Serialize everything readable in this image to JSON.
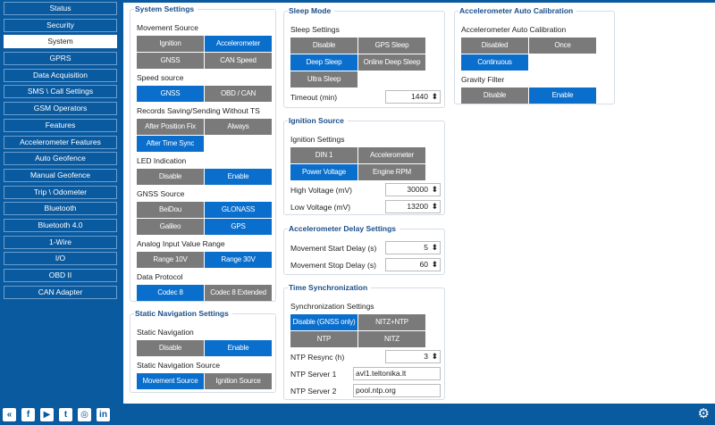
{
  "sidebar": {
    "items": [
      "Status",
      "Security",
      "System",
      "GPRS",
      "Data Acquisition",
      "SMS \\ Call Settings",
      "GSM Operators",
      "Features",
      "Accelerometer Features",
      "Auto Geofence",
      "Manual Geofence",
      "Trip \\ Odometer",
      "Bluetooth",
      "Bluetooth 4.0",
      "1-Wire",
      "I/O",
      "OBD II",
      "CAN Adapter"
    ],
    "active": "System"
  },
  "footer": {
    "icons": [
      "back-icon",
      "facebook-icon",
      "youtube-icon",
      "twitter-icon",
      "instagram-icon",
      "linkedin-icon"
    ],
    "settings_icon": "gear-icon"
  },
  "colors": {
    "brand": "#0a5aa0",
    "active_button": "#0a6ecc",
    "inactive_button": "#7a7a7a"
  },
  "groups": [
    {
      "id": "system-settings",
      "title": "System Settings",
      "rows": [
        {
          "type": "label",
          "text": "Movement Source"
        },
        {
          "type": "buttons",
          "items": [
            {
              "label": "Ignition",
              "active": false
            },
            {
              "label": "Accelerometer",
              "active": true
            },
            {
              "label": "GNSS",
              "active": false
            },
            {
              "label": "CAN Speed",
              "active": false
            }
          ]
        },
        {
          "type": "label",
          "text": "Speed source"
        },
        {
          "type": "buttons",
          "items": [
            {
              "label": "GNSS",
              "active": true
            },
            {
              "label": "OBD / CAN",
              "active": false
            }
          ]
        },
        {
          "type": "label",
          "text": "Records Saving/Sending Without TS"
        },
        {
          "type": "buttons",
          "items": [
            {
              "label": "After Position Fix",
              "active": false
            },
            {
              "label": "Always",
              "active": false
            },
            {
              "label": "After Time Sync",
              "active": true
            }
          ]
        },
        {
          "type": "label",
          "text": "LED Indication"
        },
        {
          "type": "buttons",
          "items": [
            {
              "label": "Disable",
              "active": false
            },
            {
              "label": "Enable",
              "active": true
            }
          ]
        },
        {
          "type": "label",
          "text": "GNSS Source"
        },
        {
          "type": "buttons",
          "items": [
            {
              "label": "BeiDou",
              "active": false
            },
            {
              "label": "GLONASS",
              "active": true
            },
            {
              "label": "Galileo",
              "active": false
            },
            {
              "label": "GPS",
              "active": true
            }
          ]
        },
        {
          "type": "label",
          "text": "Analog Input Value Range"
        },
        {
          "type": "buttons",
          "items": [
            {
              "label": "Range 10V",
              "active": false
            },
            {
              "label": "Range 30V",
              "active": true
            }
          ]
        },
        {
          "type": "label",
          "text": "Data Protocol"
        },
        {
          "type": "buttons",
          "items": [
            {
              "label": "Codec 8",
              "active": true
            },
            {
              "label": "Codec 8 Extended",
              "active": false
            }
          ]
        }
      ]
    },
    {
      "id": "static-navigation",
      "title": "Static Navigation Settings",
      "rows": [
        {
          "type": "label",
          "text": "Static Navigation"
        },
        {
          "type": "buttons",
          "items": [
            {
              "label": "Disable",
              "active": false
            },
            {
              "label": "Enable",
              "active": true
            }
          ]
        },
        {
          "type": "label",
          "text": "Static Navigation Source"
        },
        {
          "type": "buttons",
          "items": [
            {
              "label": "Movement Source",
              "active": true
            },
            {
              "label": "Ignition Source",
              "active": false
            }
          ]
        }
      ]
    },
    {
      "id": "sleep-mode",
      "title": "Sleep Mode",
      "rows": [
        {
          "type": "label",
          "text": "Sleep Settings"
        },
        {
          "type": "buttons",
          "items": [
            {
              "label": "Disable",
              "active": false
            },
            {
              "label": "GPS Sleep",
              "active": false
            },
            {
              "label": "Deep Sleep",
              "active": true
            },
            {
              "label": "Online Deep Sleep",
              "active": false
            },
            {
              "label": "Ultra Sleep",
              "active": false
            }
          ]
        },
        {
          "type": "spin",
          "label": "Timeout    (min)",
          "value": "1440"
        }
      ]
    },
    {
      "id": "ignition-source",
      "title": "Ignition Source",
      "rows": [
        {
          "type": "label",
          "text": "Ignition Settings"
        },
        {
          "type": "buttons",
          "items": [
            {
              "label": "DIN 1",
              "active": false
            },
            {
              "label": "Accelerometer",
              "active": false
            },
            {
              "label": "Power Voltage",
              "active": true
            },
            {
              "label": "Engine RPM",
              "active": false
            }
          ]
        },
        {
          "type": "spin",
          "label": "High Voltage    (mV)",
          "value": "30000"
        },
        {
          "type": "spin",
          "label": "Low Voltage    (mV)",
          "value": "13200"
        }
      ]
    },
    {
      "id": "accelerometer-delay",
      "title": "Accelerometer Delay Settings",
      "rows": [
        {
          "type": "spin",
          "label": "Movement Start Delay    (s)",
          "value": "5"
        },
        {
          "type": "spin",
          "label": "Movement Stop Delay    (s)",
          "value": "60"
        }
      ]
    },
    {
      "id": "time-synchronization",
      "title": "Time Synchronization",
      "rows": [
        {
          "type": "label",
          "text": "Synchronization Settings"
        },
        {
          "type": "buttons",
          "items": [
            {
              "label": "Disable (GNSS only)",
              "active": true
            },
            {
              "label": "NITZ+NTP",
              "active": false
            },
            {
              "label": "NTP",
              "active": false
            },
            {
              "label": "NITZ",
              "active": false
            }
          ]
        },
        {
          "type": "spin",
          "label": "NTP Resync    (h)",
          "value": "3"
        },
        {
          "type": "text",
          "label": "NTP Server 1",
          "value": "avl1.teltonika.lt"
        },
        {
          "type": "text",
          "label": "NTP Server 2",
          "value": "pool.ntp.org"
        }
      ]
    },
    {
      "id": "accelerometer-auto-calibration",
      "title": "Accelerometer Auto Calibration",
      "rows": [
        {
          "type": "label",
          "text": "Accelerometer Auto Calibration"
        },
        {
          "type": "buttons",
          "items": [
            {
              "label": "Disabled",
              "active": false
            },
            {
              "label": "Once",
              "active": false
            },
            {
              "label": "Continuous",
              "active": true
            }
          ]
        },
        {
          "type": "label",
          "text": "Gravity Filter"
        },
        {
          "type": "buttons",
          "items": [
            {
              "label": "Disable",
              "active": false
            },
            {
              "label": "Enable",
              "active": true
            }
          ]
        }
      ]
    }
  ]
}
